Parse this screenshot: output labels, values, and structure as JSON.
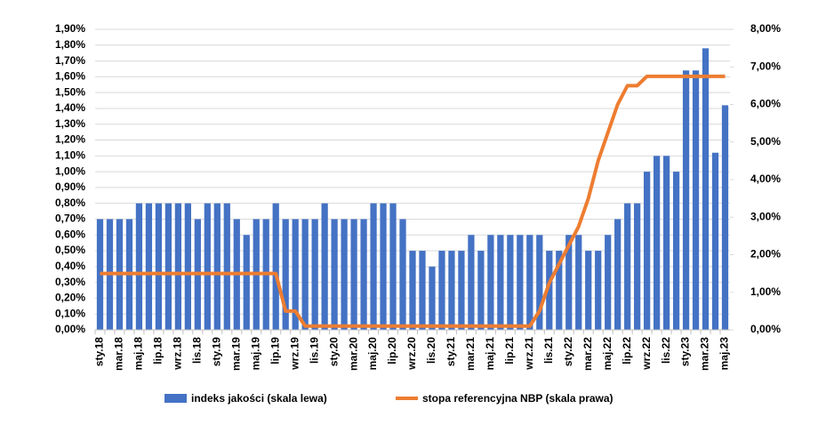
{
  "chart_data": {
    "type": "bar-line",
    "categories": [
      "sty.18",
      null,
      "mar.18",
      null,
      "maj.18",
      null,
      "lip.18",
      null,
      "wrz.18",
      null,
      "lis.18",
      null,
      "sty.19",
      null,
      "mar.19",
      null,
      "maj.19",
      null,
      "lip.19",
      null,
      "wrz.19",
      null,
      "lis.19",
      null,
      "sty.20",
      null,
      "mar.20",
      null,
      "maj.20",
      null,
      "lip.20",
      null,
      "wrz.20",
      null,
      "lis.20",
      null,
      "sty.21",
      null,
      "mar.21",
      null,
      "maj.21",
      null,
      "lip.21",
      null,
      "wrz.21",
      null,
      "lis.21",
      null,
      "sty.22",
      null,
      "mar.22",
      null,
      "maj.22",
      null,
      "lip.22",
      null,
      "wrz.22",
      null,
      "lis.22",
      null,
      "sty.23",
      null,
      "mar.23",
      null,
      "maj.23"
    ],
    "series": [
      {
        "name": "indeks jakości (skala lewa)",
        "type": "bar",
        "color": "#4472c4",
        "values": [
          0.7,
          0.7,
          0.7,
          0.7,
          0.8,
          0.8,
          0.8,
          0.8,
          0.8,
          0.8,
          0.7,
          0.8,
          0.8,
          0.8,
          0.7,
          0.6,
          0.7,
          0.7,
          0.8,
          0.7,
          0.7,
          0.7,
          0.7,
          0.8,
          0.7,
          0.7,
          0.7,
          0.7,
          0.8,
          0.8,
          0.8,
          0.7,
          0.5,
          0.5,
          0.4,
          0.5,
          0.5,
          0.5,
          0.6,
          0.5,
          0.6,
          0.6,
          0.6,
          0.6,
          0.6,
          0.6,
          0.5,
          0.5,
          0.6,
          0.6,
          0.5,
          0.5,
          0.6,
          0.7,
          0.8,
          0.8,
          1.0,
          1.1,
          1.1,
          1.0,
          1.64,
          1.64,
          1.78,
          1.12,
          1.42
        ]
      },
      {
        "name": "stopa referencyjna NBP (skala prawa)",
        "type": "line",
        "axis": "y2",
        "color": "#ed7d31",
        "values": [
          1.5,
          1.5,
          1.5,
          1.5,
          1.5,
          1.5,
          1.5,
          1.5,
          1.5,
          1.5,
          1.5,
          1.5,
          1.5,
          1.5,
          1.5,
          1.5,
          1.5,
          1.5,
          1.5,
          0.5,
          0.5,
          0.1,
          0.1,
          0.1,
          0.1,
          0.1,
          0.1,
          0.1,
          0.1,
          0.1,
          0.1,
          0.1,
          0.1,
          0.1,
          0.1,
          0.1,
          0.1,
          0.1,
          0.1,
          0.1,
          0.1,
          0.1,
          0.1,
          0.1,
          0.1,
          0.5,
          1.25,
          1.75,
          2.25,
          2.75,
          3.5,
          4.5,
          5.25,
          6.0,
          6.5,
          6.5,
          6.75,
          6.75,
          6.75,
          6.75,
          6.75,
          6.75,
          6.75,
          6.75,
          6.75
        ]
      }
    ],
    "ylim": [
      0,
      1.9
    ],
    "yticks": [
      {
        "value": 0,
        "label": "0,00%"
      },
      {
        "value": 0.1,
        "label": "0,10%"
      },
      {
        "value": 0.2,
        "label": "0,20%"
      },
      {
        "value": 0.3,
        "label": "0,30%"
      },
      {
        "value": 0.4,
        "label": "0,40%"
      },
      {
        "value": 0.5,
        "label": "0,50%"
      },
      {
        "value": 0.6,
        "label": "0,60%"
      },
      {
        "value": 0.7,
        "label": "0,70%"
      },
      {
        "value": 0.8,
        "label": "0,80%"
      },
      {
        "value": 0.9,
        "label": "0,90%"
      },
      {
        "value": 1.0,
        "label": "1,00%"
      },
      {
        "value": 1.1,
        "label": "1,10%"
      },
      {
        "value": 1.2,
        "label": "1,20%"
      },
      {
        "value": 1.3,
        "label": "1,30%"
      },
      {
        "value": 1.4,
        "label": "1,40%"
      },
      {
        "value": 1.5,
        "label": "1,50%"
      },
      {
        "value": 1.6,
        "label": "1,60%"
      },
      {
        "value": 1.7,
        "label": "1,70%"
      },
      {
        "value": 1.8,
        "label": "1,80%"
      },
      {
        "value": 1.9,
        "label": "1,90%"
      }
    ],
    "y2lim": [
      0,
      8
    ],
    "y2ticks": [
      {
        "value": 0,
        "label": "0,00%"
      },
      {
        "value": 1,
        "label": "1,00%"
      },
      {
        "value": 2,
        "label": "2,00%"
      },
      {
        "value": 3,
        "label": "3,00%"
      },
      {
        "value": 4,
        "label": "4,00%"
      },
      {
        "value": 5,
        "label": "5,00%"
      },
      {
        "value": 6,
        "label": "6,00%"
      },
      {
        "value": 7,
        "label": "7,00%"
      },
      {
        "value": 8,
        "label": "8,00%"
      }
    ],
    "grid": true
  }
}
